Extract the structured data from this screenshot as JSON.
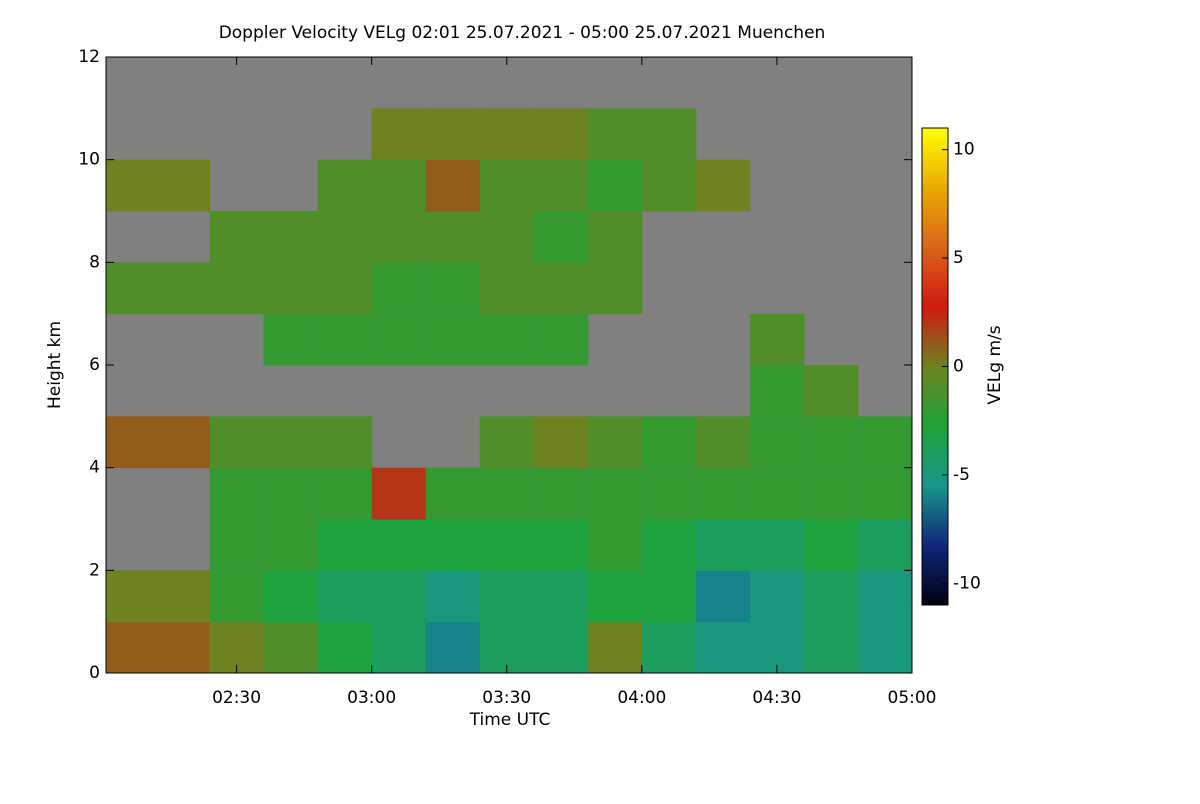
{
  "chart_data": {
    "type": "heatmap",
    "title": "Doppler Velocity VELg   02:01 25.07.2021 - 05:00 25.07.2021 Muenchen",
    "x_label": "Time UTC",
    "y_label": "Height km",
    "colorbar_label": "VELg m/s",
    "x": [
      2.1,
      2.3,
      2.5,
      2.7,
      2.9,
      3.1,
      3.3,
      3.5,
      3.7,
      3.9,
      4.1,
      4.3,
      4.5,
      4.7,
      4.9
    ],
    "y": [
      0.5,
      1.5,
      2.5,
      3.5,
      4.5,
      5.5,
      6.5,
      7.5,
      8.5,
      9.5,
      10.5,
      11.5
    ],
    "z": [
      [
        1,
        1,
        0,
        -1,
        -3,
        -4,
        -6,
        -4,
        -4,
        0,
        -4,
        -5,
        -5,
        -4,
        -5
      ],
      [
        0,
        0,
        -2,
        -3,
        -4,
        -4,
        -5,
        -4,
        -4,
        -3,
        -3,
        -6,
        -5,
        -4,
        -5
      ],
      [
        null,
        null,
        -2,
        -2,
        -3,
        -3,
        -3,
        -3,
        -3,
        -2,
        -3,
        -4,
        -4,
        -3,
        -4
      ],
      [
        null,
        null,
        -2,
        -2,
        -2,
        2,
        -2,
        -2,
        -2,
        -2,
        -2,
        -2,
        -2,
        -2,
        -2
      ],
      [
        1,
        1,
        -1,
        -1,
        -1,
        null,
        null,
        -1,
        0,
        -1,
        -2,
        -1,
        -2,
        -2,
        -2
      ],
      [
        null,
        null,
        null,
        null,
        null,
        null,
        null,
        null,
        null,
        null,
        null,
        null,
        -2,
        -1,
        null
      ],
      [
        null,
        null,
        null,
        -2,
        -2,
        -2,
        -2,
        -2,
        -2,
        null,
        null,
        null,
        -1,
        null,
        null
      ],
      [
        -1,
        -1,
        -1,
        -1,
        -1,
        -2,
        -2,
        -1,
        -1,
        -1,
        null,
        null,
        null,
        null,
        null
      ],
      [
        null,
        null,
        -1,
        -1,
        -1,
        -1,
        -1,
        -1,
        -2,
        -1,
        null,
        null,
        null,
        null,
        null
      ],
      [
        0,
        0,
        null,
        null,
        -1,
        -1,
        1,
        -1,
        -1,
        -2,
        -1,
        0,
        null,
        null,
        null
      ],
      [
        null,
        null,
        null,
        null,
        null,
        0,
        0,
        0,
        0,
        -1,
        -1,
        null,
        null,
        null,
        null
      ],
      [
        null,
        null,
        null,
        null,
        null,
        null,
        null,
        null,
        null,
        null,
        null,
        null,
        null,
        null,
        null
      ]
    ],
    "x_cell_width": 0.2,
    "y_cell_height": 1,
    "xlim": [
      2.0167,
      5.0
    ],
    "ylim": [
      0,
      12
    ],
    "xticks": [
      {
        "value": 2.5,
        "label": "02:30"
      },
      {
        "value": 3.0,
        "label": "03:00"
      },
      {
        "value": 3.5,
        "label": "03:30"
      },
      {
        "value": 4.0,
        "label": "04:00"
      },
      {
        "value": 4.5,
        "label": "04:30"
      },
      {
        "value": 5.0,
        "label": "05:00"
      }
    ],
    "yticks": [
      0,
      2,
      4,
      6,
      8,
      10,
      12
    ],
    "clim": [
      -11,
      11
    ],
    "cticks": [
      -10,
      -5,
      0,
      5,
      10
    ],
    "colormap": [
      "#000010",
      "#10287a",
      "#18968a",
      "#1fa238",
      "#6e8222",
      "#d01a12",
      "#d8651a",
      "#e8ab00",
      "#ffff00"
    ],
    "missing_color": "#808080"
  }
}
